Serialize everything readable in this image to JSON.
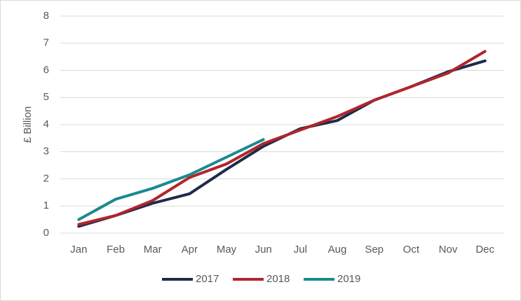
{
  "chart_data": {
    "type": "line",
    "y_label": "£ Billion",
    "categories": [
      "Jan",
      "Feb",
      "Mar",
      "Apr",
      "May",
      "Jun",
      "Jul",
      "Aug",
      "Sep",
      "Oct",
      "Nov",
      "Dec"
    ],
    "series": [
      {
        "name": "2017",
        "color": "#1f2a4d",
        "values": [
          0.25,
          0.65,
          1.1,
          1.45,
          2.35,
          3.2,
          3.85,
          4.15,
          4.9,
          5.4,
          5.95,
          6.35
        ]
      },
      {
        "name": "2018",
        "color": "#b0262b",
        "values": [
          0.32,
          0.65,
          1.2,
          2.05,
          2.55,
          3.3,
          3.8,
          4.3,
          4.9,
          5.4,
          5.9,
          6.7
        ]
      },
      {
        "name": "2019",
        "color": "#1a8a91",
        "values": [
          0.5,
          1.25,
          1.65,
          2.15,
          2.8,
          3.45,
          null,
          null,
          null,
          null,
          null,
          null
        ]
      }
    ],
    "ylim": [
      0,
      8
    ],
    "yticks": [
      0,
      1,
      2,
      3,
      4,
      5,
      6,
      7,
      8
    ],
    "grid": true,
    "legend": "bottom"
  }
}
